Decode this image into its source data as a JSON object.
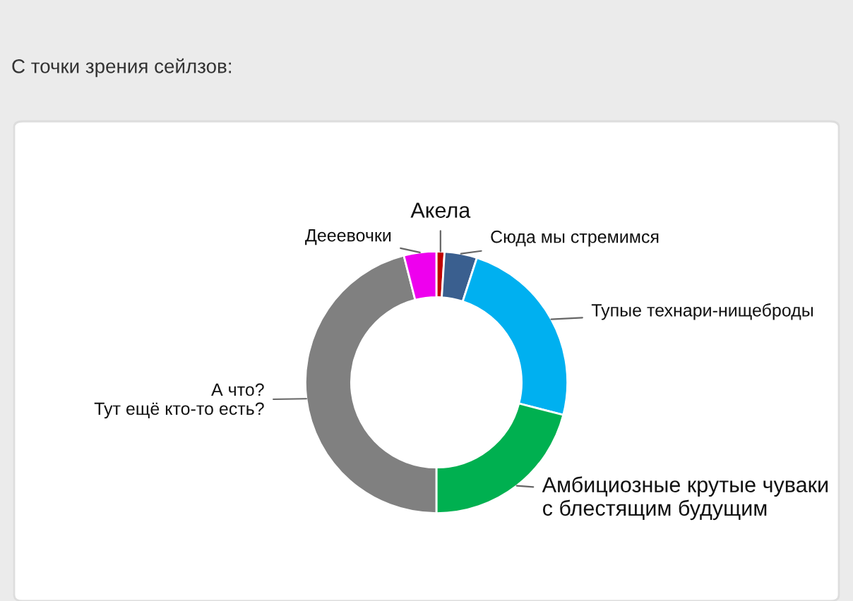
{
  "chart_data": {
    "type": "donut",
    "title": "С точки зрения сейлзов:",
    "categories": [
      "Акела",
      "Сюда мы стремимся",
      "Тупые технари-нищеброды",
      "Амбициозные крутые чуваки\nс блестящим будущим",
      "А что?\nТут ещё кто-то есть?",
      "Дееевочки"
    ],
    "values": [
      1,
      4,
      24,
      21,
      46,
      4
    ],
    "colors": [
      "#c00000",
      "#3a5f8f",
      "#00b0f0",
      "#00b050",
      "#808080",
      "#ee00ee"
    ],
    "legend": false
  }
}
